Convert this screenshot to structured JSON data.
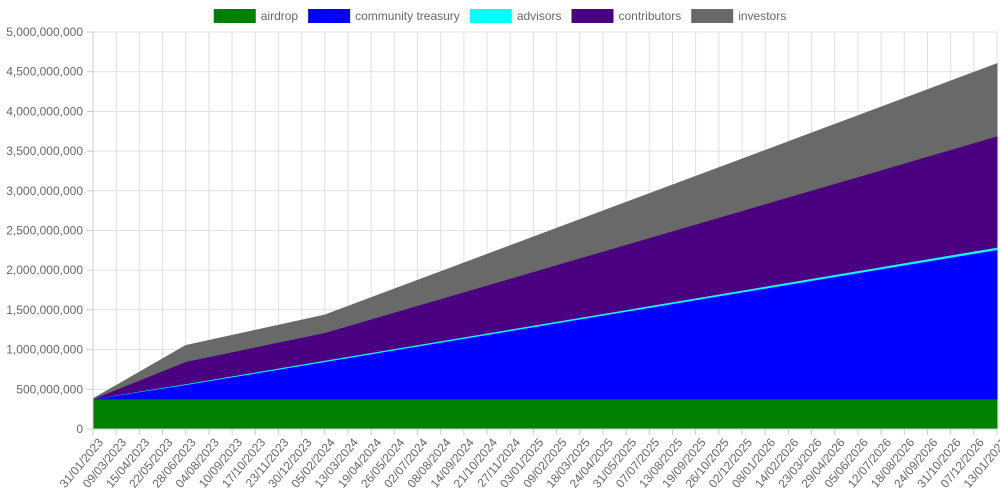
{
  "chart_data": {
    "type": "area",
    "stacked": true,
    "title": "",
    "xlabel": "",
    "ylabel": "",
    "ylim": [
      0,
      5000000000
    ],
    "y_ticks": [
      0,
      500000000,
      1000000000,
      1500000000,
      2000000000,
      2500000000,
      3000000000,
      3500000000,
      4000000000,
      4500000000,
      5000000000
    ],
    "y_tick_labels": [
      "0",
      "500,000,000",
      "1,000,000,000",
      "1,500,000,000",
      "2,000,000,000",
      "2,500,000,000",
      "3,000,000,000",
      "3,500,000,000",
      "4,000,000,000",
      "4,500,000,000",
      "5,000,000,000"
    ],
    "x_tick_labels": [
      "31/01/2023",
      "09/03/2023",
      "15/04/2023",
      "22/05/2023",
      "28/06/2023",
      "04/08/2023",
      "10/09/2023",
      "17/10/2023",
      "23/11/2023",
      "30/12/2023",
      "05/02/2024",
      "13/03/2024",
      "19/04/2024",
      "26/05/2024",
      "02/07/2024",
      "08/08/2024",
      "14/09/2024",
      "21/10/2024",
      "27/11/2024",
      "03/01/2025",
      "09/02/2025",
      "18/03/2025",
      "24/04/2025",
      "31/05/2025",
      "07/07/2025",
      "13/08/2025",
      "19/09/2025",
      "26/10/2025",
      "02/12/2025",
      "08/01/2026",
      "14/02/2026",
      "23/03/2026",
      "29/04/2026",
      "05/06/2026",
      "12/07/2026",
      "18/08/2026",
      "24/09/2026",
      "31/10/2026",
      "07/12/2026",
      "13/01/2027"
    ],
    "grid": true,
    "legend_position": "top",
    "x": [
      "31/01/2023",
      "28/06/2023",
      "05/02/2024",
      "13/01/2027"
    ],
    "series": [
      {
        "name": "airdrop",
        "color": "#008000",
        "values": [
          380000000,
          380000000,
          380000000,
          380000000
        ]
      },
      {
        "name": "community treasury",
        "color": "#0000ff",
        "values": [
          0,
          180000000,
          470000000,
          1880000000
        ]
      },
      {
        "name": "advisors",
        "color": "#00ffff",
        "values": [
          0,
          10000000,
          15000000,
          30000000
        ]
      },
      {
        "name": "contributors",
        "color": "#4b0082",
        "values": [
          0,
          280000000,
          350000000,
          1400000000
        ]
      },
      {
        "name": "investors",
        "color": "#696969",
        "values": [
          0,
          200000000,
          220000000,
          910000000
        ]
      }
    ]
  }
}
